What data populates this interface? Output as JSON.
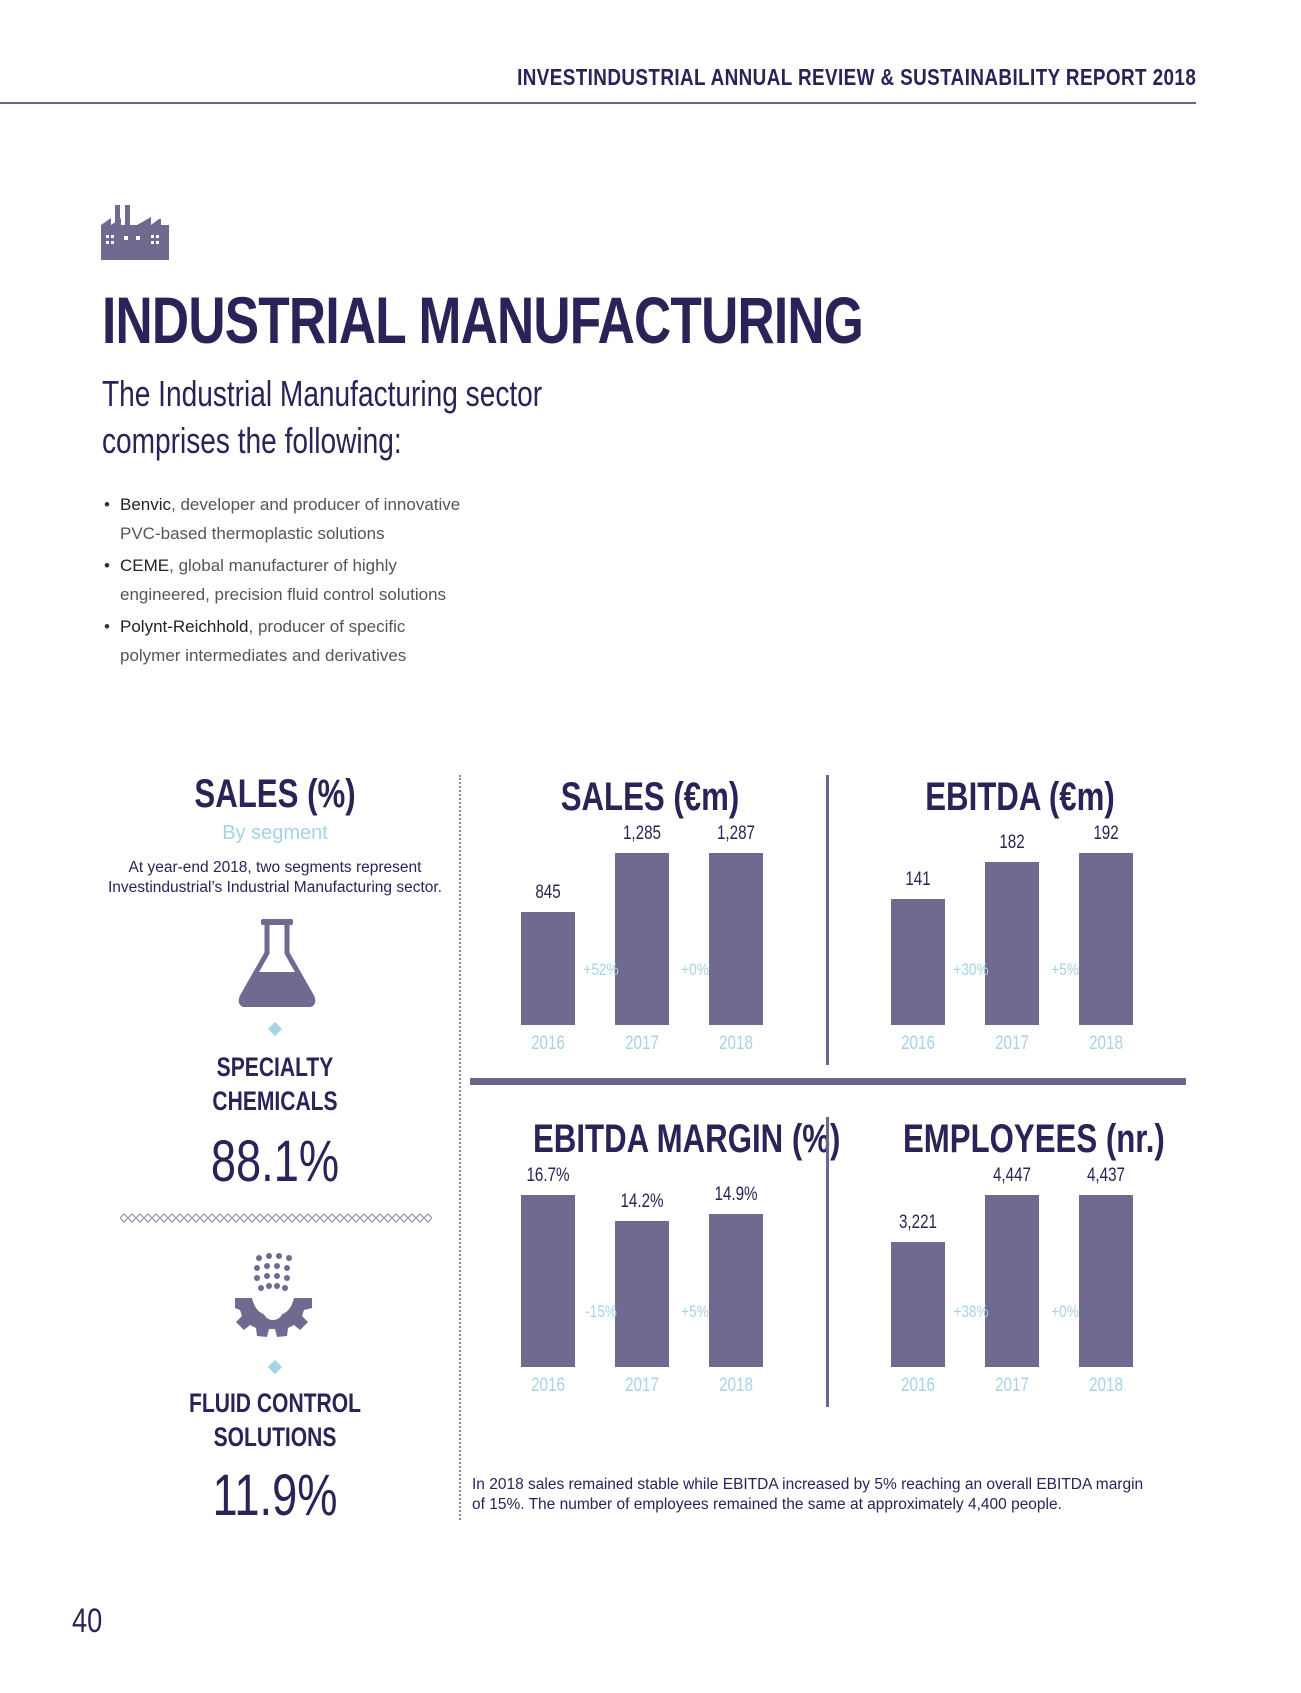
{
  "header": {
    "title": "INVESTINDUSTRIAL ANNUAL REVIEW & SUSTAINABILITY REPORT 2018"
  },
  "page_title": "INDUSTRIAL MANUFACTURING",
  "intro_lines": [
    "The Industrial Manufacturing sector",
    "comprises the following:"
  ],
  "companies": [
    {
      "name": "Benvic",
      "desc_line1": ", developer and producer of innovative",
      "desc_line2": "PVC-based thermoplastic solutions"
    },
    {
      "name": "CEME",
      "desc_line1": ", global manufacturer of highly",
      "desc_line2": "engineered, precision fluid control solutions"
    },
    {
      "name": "Polynt-Reichhold",
      "desc_line1": ", producer of specific",
      "desc_line2": "polymer intermediates and derivatives"
    }
  ],
  "sales_pct": {
    "title": "SALES (%)",
    "subtitle": "By segment",
    "desc_line1": "At year-end 2018, two segments represent",
    "desc_line2": "Investindustrial’s Industrial Manufacturing sector.",
    "segments": [
      {
        "name_line1": "SPECIALTY",
        "name_line2": "CHEMICALS",
        "value": "88.1%",
        "icon": "flask-icon"
      },
      {
        "name_line1": "FLUID CONTROL",
        "name_line2": "SOLUTIONS",
        "value": "11.9%",
        "icon": "gear-sprinkler-icon"
      }
    ]
  },
  "chart_data": [
    {
      "type": "bar",
      "title": "SALES (€m)",
      "categories": [
        "2016",
        "2017",
        "2018"
      ],
      "values": [
        845,
        1285,
        1287
      ],
      "value_labels": [
        "845",
        "1,285",
        "1,287"
      ],
      "changes": [
        "+52%",
        "+0%"
      ]
    },
    {
      "type": "bar",
      "title": "EBITDA (€m)",
      "categories": [
        "2016",
        "2017",
        "2018"
      ],
      "values": [
        141,
        182,
        192
      ],
      "value_labels": [
        "141",
        "182",
        "192"
      ],
      "changes": [
        "+30%",
        "+5%"
      ]
    },
    {
      "type": "bar",
      "title": "EBITDA MARGIN (%)",
      "categories": [
        "2016",
        "2017",
        "2018"
      ],
      "values": [
        16.7,
        14.2,
        14.9
      ],
      "value_labels": [
        "16.7%",
        "14.2%",
        "14.9%"
      ],
      "changes": [
        "-15%",
        "+5%"
      ]
    },
    {
      "type": "bar",
      "title": "EMPLOYEES (nr.)",
      "categories": [
        "2016",
        "2017",
        "2018"
      ],
      "values": [
        3221,
        4447,
        4437
      ],
      "value_labels": [
        "3,221",
        "4,447",
        "4,437"
      ],
      "changes": [
        "+38%",
        "+0%"
      ]
    }
  ],
  "summary_line1": "In 2018 sales remained stable while EBITDA increased by 5% reaching an overall EBITDA margin",
  "summary_line2": "of 15%. The number of employees remained the same at approximately 4,400 people.",
  "page_number": "40",
  "colors": {
    "primary": "#2b2357",
    "bar": "#706a90",
    "accent": "#a6d3e6"
  }
}
